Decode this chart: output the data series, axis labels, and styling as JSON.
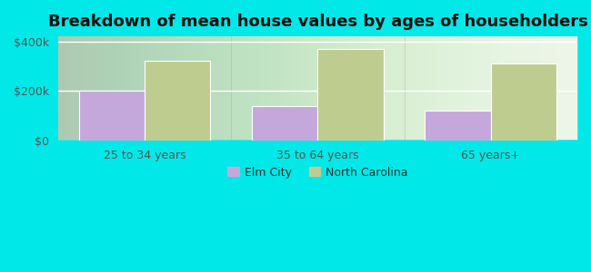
{
  "title": "Breakdown of mean house values by ages of householders",
  "categories": [
    "25 to 34 years",
    "35 to 64 years",
    "65 years+"
  ],
  "elm_city_values": [
    200000,
    140000,
    120000
  ],
  "north_carolina_values": [
    320000,
    370000,
    310000
  ],
  "elm_city_color": "#c4a8dc",
  "north_carolina_color": "#bfcc90",
  "background_color": "#00e8e8",
  "ylim": [
    0,
    420000
  ],
  "yticks": [
    0,
    200000,
    400000
  ],
  "ytick_labels": [
    "$0",
    "$200k",
    "$400k"
  ],
  "legend_labels": [
    "Elm City",
    "North Carolina"
  ],
  "bar_width": 0.38,
  "title_fontsize": 13,
  "tick_fontsize": 9,
  "legend_fontsize": 9
}
